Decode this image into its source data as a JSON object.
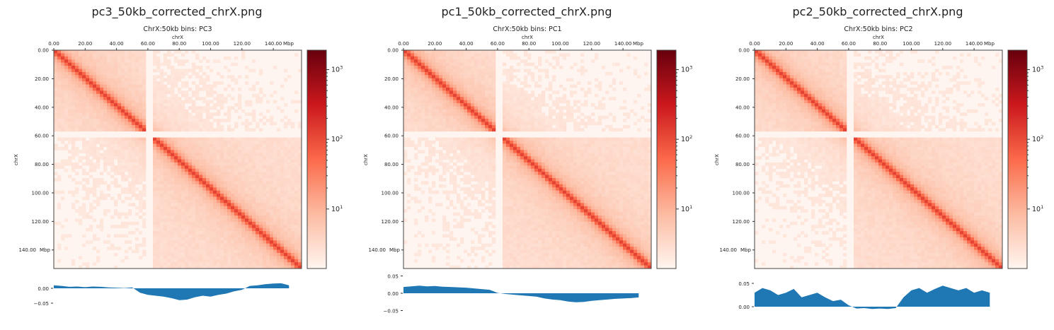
{
  "colors": {
    "low": "#fff5f0",
    "mid": "#fb6a4a",
    "high": "#67000d",
    "track": "#1f77b4"
  },
  "chart_data": [
    {
      "type": "heatmap",
      "file_title": "pc3_50kb_corrected_chrX.png",
      "title": "ChrX:50kb bins: PC3",
      "xlabel": "chrX",
      "ylabel": "chrX",
      "xticks": [
        "0.00",
        "20.00",
        "40.00",
        "60.00",
        "80.00",
        "100.00",
        "120.00",
        "140.00"
      ],
      "yticks": [
        "0.00",
        "20.00",
        "40.00",
        "60.00",
        "80.00",
        "100.00",
        "120.00",
        "140.00"
      ],
      "unit": "Mbp",
      "axis_range_mbp": [
        0,
        153
      ],
      "colorbar": {
        "scale": "log",
        "range": [
          1.4,
          1900
        ],
        "ticks": [
          "10",
          "10",
          "10"
        ],
        "tick_exponents": [
          "3",
          "2",
          "1"
        ],
        "tick_values": [
          1000,
          100,
          10
        ]
      },
      "track": {
        "type": "area",
        "yticks": [
          "0.00",
          "−0.05"
        ],
        "ytick_values": [
          0,
          -0.05
        ],
        "ylim": [
          -0.065,
          0.02
        ],
        "x_step_mbp": 5,
        "values": [
          0.01,
          0.008,
          0.005,
          0.006,
          0.004,
          0.006,
          0.005,
          0.003,
          0.002,
          0.001,
          0.003,
          -0.015,
          -0.022,
          -0.025,
          -0.028,
          -0.033,
          -0.04,
          -0.038,
          -0.03,
          -0.025,
          -0.028,
          -0.022,
          -0.018,
          -0.01,
          -0.005,
          0.008,
          0.01,
          0.014,
          0.016,
          0.017,
          0.01
        ]
      }
    },
    {
      "type": "heatmap",
      "file_title": "pc1_50kb_corrected_chrX.png",
      "title": "ChrX:50kb bins: PC1",
      "xlabel": "chrX",
      "ylabel": "chrX",
      "xticks": [
        "0.00",
        "20.00",
        "40.00",
        "60.00",
        "80.00",
        "100.00",
        "120.00",
        "140.00"
      ],
      "yticks": [
        "0.00",
        "20.00",
        "40.00",
        "60.00",
        "80.00",
        "100.00",
        "120.00",
        "140.00"
      ],
      "unit": "Mbp",
      "axis_range_mbp": [
        0,
        153
      ],
      "colorbar": {
        "scale": "log",
        "range": [
          1.4,
          1900
        ],
        "ticks": [
          "10",
          "10",
          "10"
        ],
        "tick_exponents": [
          "3",
          "2",
          "1"
        ],
        "tick_values": [
          1000,
          100,
          10
        ]
      },
      "track": {
        "type": "area",
        "yticks": [
          "0.05",
          "0.00",
          "−0.05"
        ],
        "ytick_values": [
          0.05,
          0,
          -0.05
        ],
        "ylim": [
          -0.06,
          0.06
        ],
        "x_step_mbp": 5,
        "values": [
          0.018,
          0.02,
          0.022,
          0.02,
          0.021,
          0.019,
          0.018,
          0.017,
          0.016,
          0.014,
          0.012,
          0.01,
          0.001,
          -0.002,
          -0.004,
          -0.006,
          -0.008,
          -0.01,
          -0.015,
          -0.018,
          -0.02,
          -0.024,
          -0.026,
          -0.025,
          -0.022,
          -0.02,
          -0.018,
          -0.016,
          -0.015,
          -0.014,
          -0.012
        ]
      }
    },
    {
      "type": "heatmap",
      "file_title": "pc2_50kb_corrected_chrX.png",
      "title": "ChrX:50kb bins: PC2",
      "xlabel": "chrX",
      "ylabel": "chrX",
      "xticks": [
        "0.00",
        "20.00",
        "40.00",
        "60.00",
        "80.00",
        "100.00",
        "120.00",
        "140.00"
      ],
      "yticks": [
        "0.00",
        "20.00",
        "40.00",
        "60.00",
        "80.00",
        "100.00",
        "120.00",
        "140.00"
      ],
      "unit": "Mbp",
      "axis_range_mbp": [
        0,
        153
      ],
      "colorbar": {
        "scale": "log",
        "range": [
          1.4,
          1900
        ],
        "ticks": [
          "10",
          "10",
          "10"
        ],
        "tick_exponents": [
          "3",
          "2",
          "1"
        ],
        "tick_values": [
          1000,
          100,
          10
        ]
      },
      "track": {
        "type": "area",
        "yticks": [
          "0.05",
          "0.00"
        ],
        "ytick_values": [
          0.05,
          0
        ],
        "ylim": [
          -0.015,
          0.065
        ],
        "x_step_mbp": 5,
        "values": [
          0.03,
          0.04,
          0.035,
          0.025,
          0.03,
          0.038,
          0.02,
          0.025,
          0.03,
          0.02,
          0.012,
          0.015,
          0.003,
          -0.004,
          -0.003,
          -0.005,
          -0.004,
          -0.005,
          -0.003,
          0.02,
          0.035,
          0.04,
          0.03,
          0.038,
          0.045,
          0.04,
          0.035,
          0.04,
          0.03,
          0.035,
          0.03
        ]
      }
    }
  ]
}
